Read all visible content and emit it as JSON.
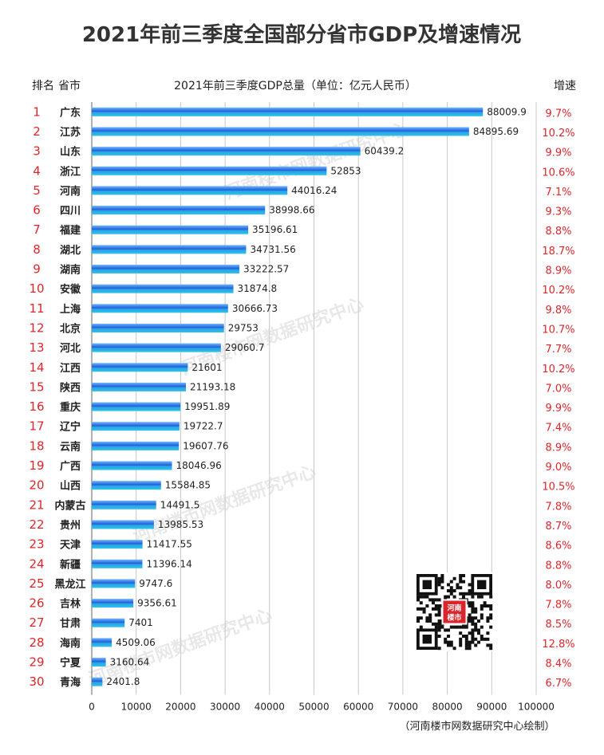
{
  "chart_data": {
    "type": "bar",
    "orientation": "horizontal",
    "title": "2021年前三季度全国部分省市GDP及增速情况",
    "header_rank": "排名",
    "header_province": "省市",
    "header_value": "2021年前三季度GDP总量（单位：亿元人民币）",
    "header_growth": "增速",
    "ranks": [
      "1",
      "2",
      "3",
      "4",
      "5",
      "6",
      "7",
      "8",
      "9",
      "10",
      "11",
      "12",
      "13",
      "14",
      "15",
      "16",
      "17",
      "18",
      "19",
      "20",
      "21",
      "22",
      "23",
      "24",
      "25",
      "26",
      "27",
      "28",
      "29",
      "30"
    ],
    "categories": [
      "广东",
      "江苏",
      "山东",
      "浙江",
      "河南",
      "四川",
      "福建",
      "湖北",
      "湖南",
      "安徽",
      "上海",
      "北京",
      "河北",
      "江西",
      "陕西",
      "重庆",
      "辽宁",
      "云南",
      "广西",
      "山西",
      "内蒙古",
      "贵州",
      "天津",
      "新疆",
      "黑龙江",
      "吉林",
      "甘肃",
      "海南",
      "宁夏",
      "青海"
    ],
    "values": [
      88009.9,
      84895.69,
      60439.2,
      52853,
      44016.24,
      38998.66,
      35196.61,
      34731.56,
      33222.57,
      31874.8,
      30666.73,
      29753,
      29060.7,
      21601,
      21193.18,
      19951.89,
      19722.7,
      19607.76,
      18046.96,
      15584.85,
      14491.5,
      13985.53,
      11417.55,
      11396.14,
      9747.6,
      9356.61,
      7401,
      4509.06,
      3160.64,
      2401.8
    ],
    "value_labels": [
      "88009.9",
      "84895.69",
      "60439.2",
      "52853",
      "44016.24",
      "38998.66",
      "35196.61",
      "34731.56",
      "33222.57",
      "31874.8",
      "30666.73",
      "29753",
      "29060.7",
      "21601",
      "21193.18",
      "19951.89",
      "19722.7",
      "19607.76",
      "18046.96",
      "15584.85",
      "14491.5",
      "13985.53",
      "11417.55",
      "11396.14",
      "9747.6",
      "9356.61",
      "7401",
      "4509.06",
      "3160.64",
      "2401.8"
    ],
    "growth": [
      "9.7%",
      "10.2%",
      "9.9%",
      "10.6%",
      "7.1%",
      "9.3%",
      "8.8%",
      "18.7%",
      "8.9%",
      "10.2%",
      "9.8%",
      "10.7%",
      "7.7%",
      "10.2%",
      "7.0%",
      "9.9%",
      "7.4%",
      "8.9%",
      "9.0%",
      "10.5%",
      "7.8%",
      "8.7%",
      "8.6%",
      "8.8%",
      "8.0%",
      "7.8%",
      "8.5%",
      "12.8%",
      "8.4%",
      "6.7%"
    ],
    "xlim": [
      0,
      100000
    ],
    "x_ticks": [
      0,
      10000,
      20000,
      30000,
      40000,
      50000,
      60000,
      70000,
      80000,
      90000,
      100000
    ],
    "x_tick_labels": [
      "0",
      "10000",
      "20000",
      "30000",
      "40000",
      "50000",
      "60000",
      "70000",
      "80000",
      "90000",
      "100000"
    ],
    "grid": true,
    "bar_color": "#2196e8",
    "growth_color": "#e0252b",
    "credit": "（河南楼市网数据研究中心绘制）",
    "watermark": "河南楼市网数据研究中心",
    "qr_badge": "河南楼市"
  }
}
